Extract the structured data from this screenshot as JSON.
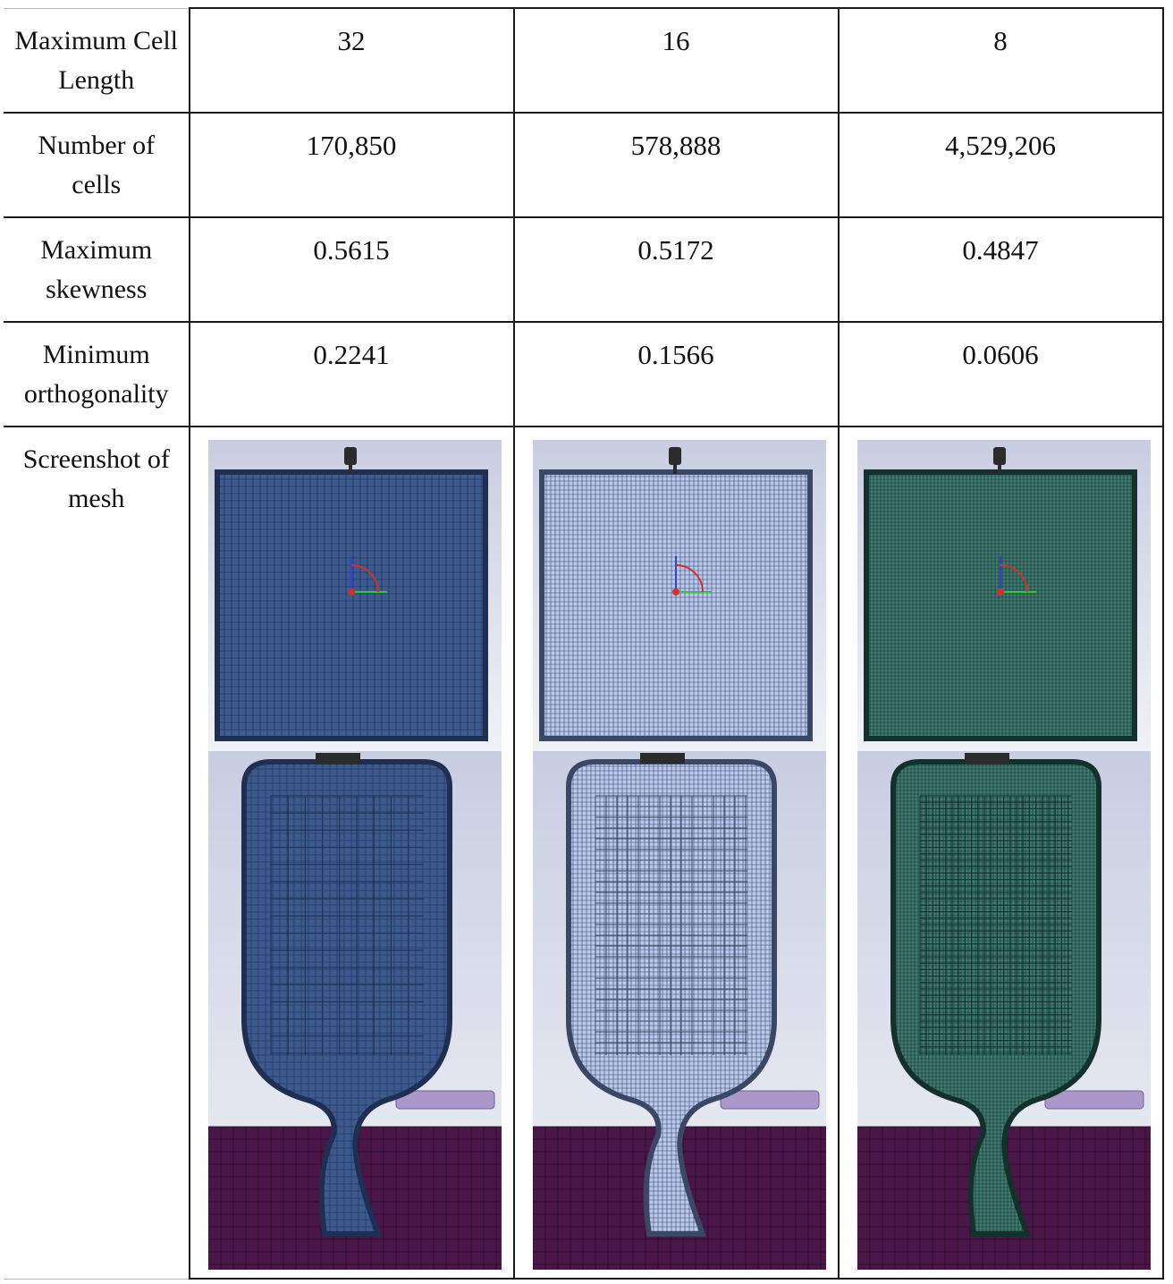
{
  "table": {
    "columns": [
      "32",
      "16",
      "8"
    ],
    "rows": [
      {
        "label": "Maximum Cell Length",
        "values": [
          "32",
          "16",
          "8"
        ]
      },
      {
        "label": "Number of cells",
        "values": [
          "170,850",
          "578,888",
          "4,529,206"
        ]
      },
      {
        "label": "Maximum skewness",
        "values": [
          "0.5615",
          "0.5172",
          "0.4847"
        ]
      },
      {
        "label": "Minimum orthogonality",
        "values": [
          "0.2241",
          "0.1566",
          "0.0606"
        ]
      }
    ],
    "screenshot_label": "Screenshot of mesh"
  },
  "meshes": [
    {
      "cell_length": "32",
      "fill": "#3c5a8e",
      "grid": "#1e2f52",
      "density": "coarse"
    },
    {
      "cell_length": "16",
      "fill": "#b9c8ec",
      "grid": "#3a4765",
      "density": "medium"
    },
    {
      "cell_length": "8",
      "fill": "#3f7d72",
      "grid": "#14302b",
      "density": "fine"
    }
  ],
  "colors": {
    "background_gradient": [
      "#f1f2f6",
      "#c9cde1"
    ],
    "ground": "#4a1648",
    "inlet_pipe": "#a998c9"
  }
}
